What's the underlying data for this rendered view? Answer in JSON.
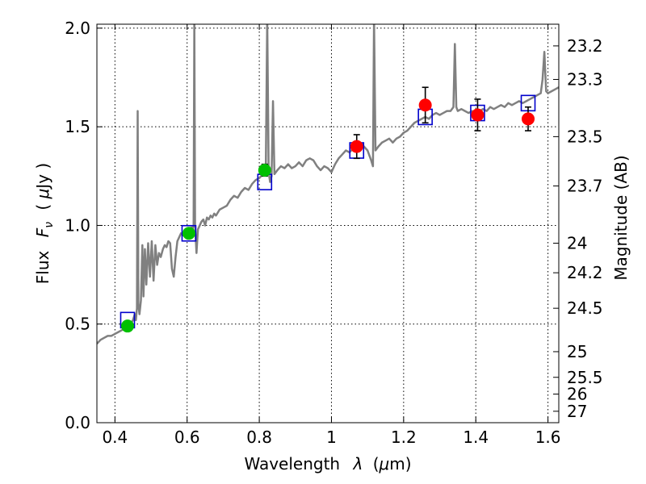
{
  "chart_data": {
    "type": "scatter",
    "xlabel": "Wavelength",
    "xlabel_symbol": "λ",
    "xlabel_unit_prefix": "(",
    "xlabel_unit_mu": "μ",
    "xlabel_unit_rest": "m)",
    "ylabel": "Flux",
    "ylabel_symbol": "F",
    "ylabel_symbol_sub": "ν",
    "ylabel_unit_prefix": "( ",
    "ylabel_unit_mu": "μ",
    "ylabel_unit_rest": "Jy )",
    "ylabel_right": "Magnitude (AB)",
    "xlim": [
      0.35,
      1.63
    ],
    "ylim": [
      0.0,
      2.02
    ],
    "grid": true,
    "x_ticks": [
      {
        "value": 0.4,
        "label": "0.4"
      },
      {
        "value": 0.6,
        "label": "0.6"
      },
      {
        "value": 0.8,
        "label": "0.8"
      },
      {
        "value": 1.0,
        "label": "1"
      },
      {
        "value": 1.2,
        "label": "1.2"
      },
      {
        "value": 1.4,
        "label": "1.4"
      },
      {
        "value": 1.6,
        "label": "1.6"
      }
    ],
    "y_ticks": [
      {
        "value": 0.0,
        "label": "0.0"
      },
      {
        "value": 0.5,
        "label": "0.5"
      },
      {
        "value": 1.0,
        "label": "1.0"
      },
      {
        "value": 1.5,
        "label": "1.5"
      },
      {
        "value": 2.0,
        "label": "2.0"
      }
    ],
    "magnitude_ticks": [
      {
        "label": "23.2",
        "flux": 1.91
      },
      {
        "label": "23.3",
        "flux": 1.74
      },
      {
        "label": "23.5",
        "flux": 1.45
      },
      {
        "label": "23.7",
        "flux": 1.2
      },
      {
        "label": "24",
        "flux": 0.91
      },
      {
        "label": "24.2",
        "flux": 0.76
      },
      {
        "label": "24.5",
        "flux": 0.58
      },
      {
        "label": "25",
        "flux": 0.36
      },
      {
        "label": "25.5",
        "flux": 0.23
      },
      {
        "label": "26",
        "flux": 0.145
      },
      {
        "label": "27",
        "flux": 0.058
      }
    ],
    "series": [
      {
        "kind": "model_spectrum",
        "color": "#808080",
        "points": [
          [
            0.35,
            0.4
          ],
          [
            0.36,
            0.42
          ],
          [
            0.37,
            0.43
          ],
          [
            0.38,
            0.44
          ],
          [
            0.39,
            0.44
          ],
          [
            0.4,
            0.45
          ],
          [
            0.41,
            0.46
          ],
          [
            0.42,
            0.47
          ],
          [
            0.43,
            0.48
          ],
          [
            0.44,
            0.49
          ],
          [
            0.45,
            0.52
          ],
          [
            0.455,
            0.55
          ],
          [
            0.458,
            0.52
          ],
          [
            0.461,
            0.58
          ],
          [
            0.463,
            1.58
          ],
          [
            0.465,
            0.6
          ],
          [
            0.468,
            0.55
          ],
          [
            0.472,
            0.62
          ],
          [
            0.476,
            0.9
          ],
          [
            0.479,
            0.64
          ],
          [
            0.483,
            0.88
          ],
          [
            0.487,
            0.7
          ],
          [
            0.492,
            0.91
          ],
          [
            0.497,
            0.74
          ],
          [
            0.502,
            0.92
          ],
          [
            0.507,
            0.72
          ],
          [
            0.512,
            0.9
          ],
          [
            0.517,
            0.8
          ],
          [
            0.522,
            0.86
          ],
          [
            0.527,
            0.84
          ],
          [
            0.533,
            0.88
          ],
          [
            0.538,
            0.9
          ],
          [
            0.543,
            0.89
          ],
          [
            0.548,
            0.92
          ],
          [
            0.553,
            0.91
          ],
          [
            0.558,
            0.78
          ],
          [
            0.563,
            0.74
          ],
          [
            0.568,
            0.84
          ],
          [
            0.573,
            0.92
          ],
          [
            0.578,
            0.94
          ],
          [
            0.583,
            0.96
          ],
          [
            0.588,
            0.95
          ],
          [
            0.593,
            0.97
          ],
          [
            0.598,
            0.96
          ],
          [
            0.603,
            0.97
          ],
          [
            0.608,
            0.98
          ],
          [
            0.612,
            0.99
          ],
          [
            0.615,
            0.98
          ],
          [
            0.618,
            1.0
          ],
          [
            0.62,
            2.05
          ],
          [
            0.622,
            1.0
          ],
          [
            0.626,
            0.86
          ],
          [
            0.63,
            0.98
          ],
          [
            0.635,
            1.0
          ],
          [
            0.64,
            1.02
          ],
          [
            0.645,
            1.03
          ],
          [
            0.65,
            1.0
          ],
          [
            0.655,
            1.04
          ],
          [
            0.66,
            1.03
          ],
          [
            0.665,
            1.05
          ],
          [
            0.67,
            1.04
          ],
          [
            0.675,
            1.06
          ],
          [
            0.68,
            1.05
          ],
          [
            0.69,
            1.08
          ],
          [
            0.7,
            1.09
          ],
          [
            0.71,
            1.1
          ],
          [
            0.72,
            1.13
          ],
          [
            0.73,
            1.15
          ],
          [
            0.74,
            1.14
          ],
          [
            0.75,
            1.17
          ],
          [
            0.76,
            1.19
          ],
          [
            0.77,
            1.18
          ],
          [
            0.78,
            1.21
          ],
          [
            0.79,
            1.23
          ],
          [
            0.8,
            1.24
          ],
          [
            0.81,
            1.26
          ],
          [
            0.818,
            1.27
          ],
          [
            0.822,
            2.05
          ],
          [
            0.826,
            1.27
          ],
          [
            0.83,
            1.22
          ],
          [
            0.834,
            1.25
          ],
          [
            0.838,
            1.63
          ],
          [
            0.842,
            1.26
          ],
          [
            0.85,
            1.28
          ],
          [
            0.86,
            1.3
          ],
          [
            0.87,
            1.29
          ],
          [
            0.88,
            1.31
          ],
          [
            0.89,
            1.29
          ],
          [
            0.9,
            1.3
          ],
          [
            0.91,
            1.32
          ],
          [
            0.92,
            1.3
          ],
          [
            0.93,
            1.33
          ],
          [
            0.94,
            1.34
          ],
          [
            0.95,
            1.33
          ],
          [
            0.96,
            1.3
          ],
          [
            0.97,
            1.28
          ],
          [
            0.98,
            1.3
          ],
          [
            0.99,
            1.29
          ],
          [
            1.0,
            1.27
          ],
          [
            1.01,
            1.31
          ],
          [
            1.02,
            1.34
          ],
          [
            1.03,
            1.36
          ],
          [
            1.04,
            1.38
          ],
          [
            1.05,
            1.37
          ],
          [
            1.06,
            1.39
          ],
          [
            1.07,
            1.4
          ],
          [
            1.08,
            1.42
          ],
          [
            1.09,
            1.4
          ],
          [
            1.1,
            1.38
          ],
          [
            1.11,
            1.33
          ],
          [
            1.115,
            1.3
          ],
          [
            1.118,
            2.05
          ],
          [
            1.122,
            1.38
          ],
          [
            1.13,
            1.4
          ],
          [
            1.14,
            1.42
          ],
          [
            1.15,
            1.43
          ],
          [
            1.16,
            1.44
          ],
          [
            1.17,
            1.42
          ],
          [
            1.18,
            1.44
          ],
          [
            1.19,
            1.45
          ],
          [
            1.2,
            1.47
          ],
          [
            1.21,
            1.48
          ],
          [
            1.22,
            1.5
          ],
          [
            1.23,
            1.52
          ],
          [
            1.24,
            1.53
          ],
          [
            1.25,
            1.54
          ],
          [
            1.26,
            1.55
          ],
          [
            1.27,
            1.54
          ],
          [
            1.28,
            1.56
          ],
          [
            1.29,
            1.57
          ],
          [
            1.3,
            1.56
          ],
          [
            1.31,
            1.57
          ],
          [
            1.32,
            1.58
          ],
          [
            1.33,
            1.58
          ],
          [
            1.338,
            1.6
          ],
          [
            1.342,
            1.92
          ],
          [
            1.346,
            1.6
          ],
          [
            1.35,
            1.58
          ],
          [
            1.36,
            1.59
          ],
          [
            1.37,
            1.58
          ],
          [
            1.38,
            1.57
          ],
          [
            1.39,
            1.58
          ],
          [
            1.4,
            1.57
          ],
          [
            1.41,
            1.58
          ],
          [
            1.42,
            1.59
          ],
          [
            1.43,
            1.58
          ],
          [
            1.44,
            1.6
          ],
          [
            1.45,
            1.59
          ],
          [
            1.46,
            1.6
          ],
          [
            1.47,
            1.61
          ],
          [
            1.48,
            1.6
          ],
          [
            1.49,
            1.62
          ],
          [
            1.5,
            1.61
          ],
          [
            1.51,
            1.62
          ],
          [
            1.52,
            1.63
          ],
          [
            1.53,
            1.62
          ],
          [
            1.54,
            1.63
          ],
          [
            1.55,
            1.64
          ],
          [
            1.56,
            1.65
          ],
          [
            1.57,
            1.66
          ],
          [
            1.58,
            1.67
          ],
          [
            1.585,
            1.74
          ],
          [
            1.59,
            1.88
          ],
          [
            1.595,
            1.68
          ],
          [
            1.6,
            1.67
          ],
          [
            1.61,
            1.68
          ],
          [
            1.62,
            1.69
          ],
          [
            1.63,
            1.7
          ]
        ]
      },
      {
        "kind": "model_photometry",
        "marker": "square",
        "color": "#0000cc",
        "points": [
          [
            0.435,
            0.52
          ],
          [
            0.605,
            0.96
          ],
          [
            0.815,
            1.22
          ],
          [
            1.07,
            1.38
          ],
          [
            1.26,
            1.55
          ],
          [
            1.405,
            1.57
          ],
          [
            1.545,
            1.62
          ]
        ]
      },
      {
        "kind": "observed_green",
        "marker": "circle",
        "color": "#00c000",
        "points": [
          {
            "x": 0.435,
            "y": 0.49,
            "err": 0.02
          },
          {
            "x": 0.605,
            "y": 0.96,
            "err": 0.02
          },
          {
            "x": 0.815,
            "y": 1.28,
            "err": 0.03
          }
        ]
      },
      {
        "kind": "observed_red",
        "marker": "circle",
        "color": "#ff0000",
        "points": [
          {
            "x": 1.07,
            "y": 1.4,
            "err": 0.06
          },
          {
            "x": 1.26,
            "y": 1.61,
            "err": 0.09
          },
          {
            "x": 1.405,
            "y": 1.56,
            "err": 0.08
          },
          {
            "x": 1.545,
            "y": 1.54,
            "err": 0.06
          }
        ]
      }
    ]
  }
}
